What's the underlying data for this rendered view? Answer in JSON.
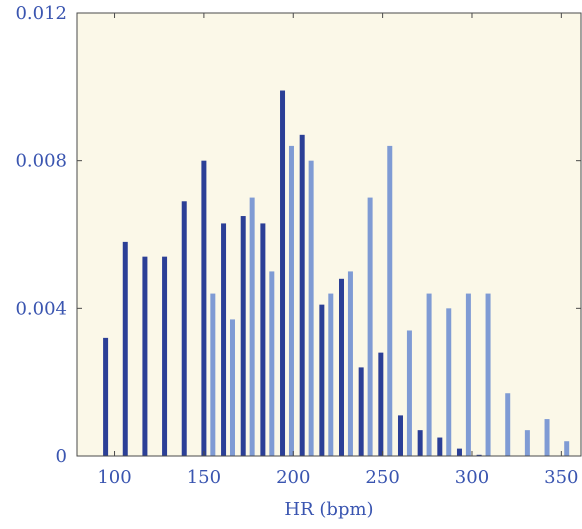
{
  "chart_data": {
    "type": "bar",
    "title": "",
    "xlabel": "HR (bpm)",
    "ylabel": "",
    "xlim": [
      79,
      361
    ],
    "ylim": [
      0,
      0.012
    ],
    "x_ticks": [
      100,
      150,
      200,
      250,
      300,
      350
    ],
    "y_ticks": [
      0,
      0.004,
      0.008,
      0.012
    ],
    "x_tick_labels": [
      "100",
      "150",
      "200",
      "250",
      "300",
      "350"
    ],
    "y_tick_labels": [
      "0",
      "0.004",
      "0.008",
      "0.012"
    ],
    "grid": false,
    "legend": false,
    "series": [
      {
        "color": "#2b3f96",
        "x": [
          95,
          106,
          117,
          128,
          139,
          150,
          161,
          172,
          183,
          194,
          205,
          216,
          227,
          238,
          249,
          260,
          271,
          282,
          293,
          304
        ],
        "values": [
          0.0032,
          0.0058,
          0.0054,
          0.0054,
          0.0069,
          0.008,
          0.0063,
          0.0065,
          0.0063,
          0.0099,
          0.0087,
          0.0041,
          0.0048,
          0.0024,
          0.0028,
          0.0011,
          0.0007,
          0.0005,
          0.0002,
          0.0
        ]
      },
      {
        "color": "#7f9bd4",
        "x": [
          155,
          166,
          177,
          188,
          199,
          210,
          221,
          232,
          243,
          254,
          265,
          276,
          287,
          298,
          309,
          320,
          331,
          342,
          353
        ],
        "values": [
          0.0044,
          0.0037,
          0.007,
          0.005,
          0.0084,
          0.008,
          0.0044,
          0.005,
          0.007,
          0.0084,
          0.0034,
          0.0044,
          0.004,
          0.0044,
          0.0044,
          0.0017,
          0.0007,
          0.001,
          0.0004
        ]
      }
    ]
  },
  "style": {
    "plot_background": "#fbf8e8",
    "frame_color": "#4a4a4a",
    "text_color": "#3a55b0"
  }
}
